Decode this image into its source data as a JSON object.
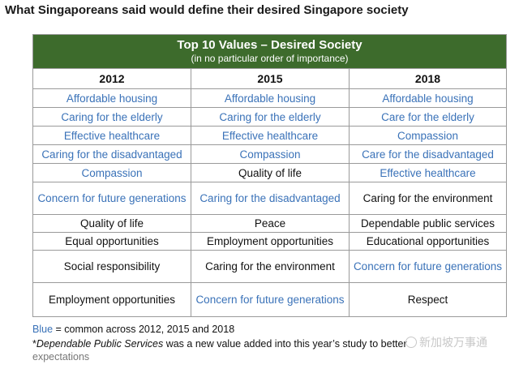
{
  "page_title": "What Singaporeans said would define their desired Singapore society",
  "table": {
    "title": "Top 10 Values – Desired Society",
    "subtitle": "(in no particular order of importance)",
    "years": [
      "2012",
      "2015",
      "2018"
    ],
    "rows": [
      [
        {
          "t": "Affordable housing",
          "c": "blue"
        },
        {
          "t": "Affordable housing",
          "c": "blue"
        },
        {
          "t": "Affordable housing",
          "c": "blue"
        }
      ],
      [
        {
          "t": "Caring for the elderly",
          "c": "blue"
        },
        {
          "t": "Caring for the elderly",
          "c": "blue"
        },
        {
          "t": "Care for the elderly",
          "c": "blue"
        }
      ],
      [
        {
          "t": "Effective healthcare",
          "c": "blue"
        },
        {
          "t": "Effective healthcare",
          "c": "blue"
        },
        {
          "t": "Compassion",
          "c": "blue"
        }
      ],
      [
        {
          "t": "Caring for the disadvantaged",
          "c": "blue"
        },
        {
          "t": "Compassion",
          "c": "blue"
        },
        {
          "t": "Care for the disadvantaged",
          "c": "blue"
        }
      ],
      [
        {
          "t": "Compassion",
          "c": "blue"
        },
        {
          "t": "Quality of life",
          "c": "black"
        },
        {
          "t": "Effective healthcare",
          "c": "blue"
        }
      ],
      [
        {
          "t": "Concern for future generations",
          "c": "blue"
        },
        {
          "t": "Caring for the disadvantaged",
          "c": "blue"
        },
        {
          "t": "Caring for the environment",
          "c": "black"
        }
      ],
      [
        {
          "t": "Quality of life",
          "c": "black"
        },
        {
          "t": "Peace",
          "c": "black"
        },
        {
          "t": "Dependable public services",
          "c": "black"
        }
      ],
      [
        {
          "t": "Equal opportunities",
          "c": "black"
        },
        {
          "t": "Employment opportunities",
          "c": "black"
        },
        {
          "t": "Educational opportunities",
          "c": "black"
        }
      ],
      [
        {
          "t": "Social responsibility",
          "c": "black"
        },
        {
          "t": "Caring for the environment",
          "c": "black"
        },
        {
          "t": "Concern for future generations",
          "c": "blue"
        }
      ],
      [
        {
          "t": "Employment opportunities",
          "c": "black"
        },
        {
          "t": "Concern for future generations",
          "c": "blue"
        },
        {
          "t": "Respect",
          "c": "black"
        }
      ]
    ]
  },
  "legend": {
    "blue_word": "Blue",
    "text": " = common across 2012, 2015 and 2018"
  },
  "footnote": {
    "star": "*",
    "em": "Dependable Public Services",
    "text": " was a new value added into this year’s study to better"
  },
  "footnote_tail": "expectations",
  "watermark": "新加坡万事通",
  "colors": {
    "header_green": "#3d6b2c",
    "blue_text": "#3a72b8"
  }
}
